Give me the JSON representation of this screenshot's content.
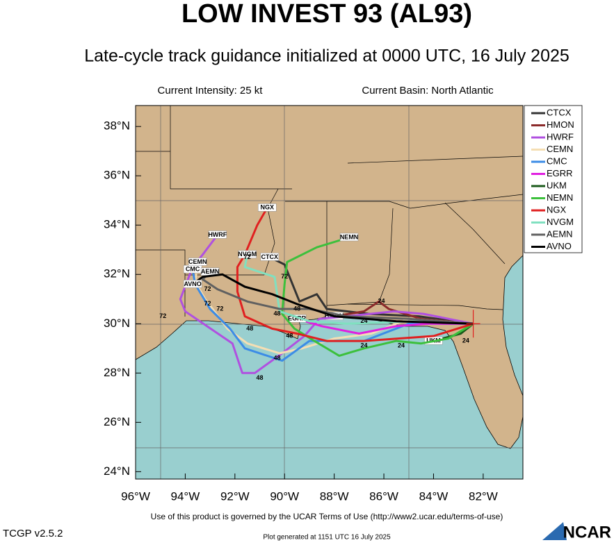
{
  "header": {
    "title": "LOW INVEST 93 (AL93)",
    "subtitle": "Late-cycle track guidance initialized at 0000 UTC, 16 July 2025",
    "intensity": "Current Intensity: 25 kt",
    "basin": "Current Basin: North Atlantic"
  },
  "footer": {
    "terms": "Use of this product is governed by the UCAR Terms of Use (http://www2.ucar.edu/terms-of-use)",
    "version": "TCGP v2.5.2",
    "generated": "Plot generated at 1151 UTC   16 July 2025",
    "logo": "NCAR"
  },
  "chart_data": {
    "type": "map",
    "xlim": [
      -96,
      -80.4
    ],
    "ylim": [
      23.7,
      38.85
    ],
    "xticks": [
      {
        "value": -96,
        "label": "96°W"
      },
      {
        "value": -94,
        "label": "94°W"
      },
      {
        "value": -92,
        "label": "92°W"
      },
      {
        "value": -90,
        "label": "90°W"
      },
      {
        "value": -88,
        "label": "88°W"
      },
      {
        "value": -86,
        "label": "86°W"
      },
      {
        "value": -84,
        "label": "84°W"
      },
      {
        "value": -82,
        "label": "82°W"
      }
    ],
    "yticks": [
      {
        "value": 24,
        "label": "24°N"
      },
      {
        "value": 26,
        "label": "26°N"
      },
      {
        "value": 28,
        "label": "28°N"
      },
      {
        "value": 30,
        "label": "30°N"
      },
      {
        "value": 32,
        "label": "32°N"
      },
      {
        "value": 34,
        "label": "34°N"
      },
      {
        "value": 36,
        "label": "36°N"
      },
      {
        "value": 38,
        "label": "38°N"
      }
    ],
    "series": [
      {
        "name": "CTCX",
        "color": "#333333",
        "lon": [
          -82.4,
          -84.6,
          -86.6,
          -88.3,
          -88.7,
          -89.4,
          -90.0,
          -90.6
        ],
        "lat": [
          30.0,
          30.3,
          30.4,
          30.6,
          31.2,
          30.9,
          32.4,
          32.7
        ]
      },
      {
        "name": "HMON",
        "color": "#8b2a2a",
        "lon": [
          -82.4,
          -84.5,
          -85.8,
          -86.2,
          -86.8,
          -88.0
        ],
        "lat": [
          30.0,
          30.2,
          30.6,
          30.9,
          30.5,
          30.3
        ]
      },
      {
        "name": "HWRF",
        "color": "#b050e0",
        "lon": [
          -82.4,
          -84.4,
          -85.6,
          -87.5,
          -88.6,
          -89.2,
          -90.1,
          -91.2,
          -91.7,
          -92.1,
          -94.0,
          -94.2,
          -93.7,
          -93.3,
          -92.7
        ],
        "lat": [
          30.0,
          30.4,
          30.5,
          30.3,
          30.2,
          29.5,
          28.8,
          28.0,
          28.0,
          29.2,
          30.5,
          31.0,
          32.3,
          32.8,
          33.6
        ]
      },
      {
        "name": "CEMN",
        "color": "#f5deb3",
        "lon": [
          -82.4,
          -85.0,
          -86.5,
          -88.0,
          -89.3,
          -90.2,
          -91.5,
          -92.3,
          -93.2,
          -93.6,
          -93.5
        ],
        "lat": [
          30.0,
          30.2,
          29.6,
          29.4,
          29.0,
          28.8,
          29.2,
          29.8,
          31.0,
          31.7,
          32.5
        ]
      },
      {
        "name": "CMC",
        "color": "#3c8ce6",
        "lon": [
          -82.4,
          -85.0,
          -86.8,
          -89.0,
          -90.1,
          -91.6,
          -92.2,
          -93.0,
          -93.6,
          -93.7
        ],
        "lat": [
          30.0,
          30.0,
          29.3,
          29.3,
          28.5,
          29.0,
          29.8,
          30.6,
          31.6,
          32.2
        ]
      },
      {
        "name": "EGRR",
        "color": "#e020e0",
        "lon": [
          -82.4,
          -84.2,
          -85.5,
          -87.0,
          -88.5,
          -89.5
        ],
        "lat": [
          30.0,
          30.0,
          29.9,
          29.6,
          29.9,
          30.2
        ]
      },
      {
        "name": "UKM",
        "color": "#1a5a1a",
        "lon": [
          -82.4,
          -82.9,
          -84.0
        ],
        "lat": [
          30.0,
          29.6,
          29.3
        ]
      },
      {
        "name": "NEMN",
        "color": "#3cc03c",
        "lon": [
          -82.4,
          -83.4,
          -84.5,
          -85.5,
          -86.8,
          -87.8,
          -88.8,
          -89.6,
          -90.1,
          -90.0,
          -89.9,
          -88.7,
          -87.4
        ],
        "lat": [
          30.0,
          29.4,
          29.2,
          29.3,
          29.0,
          28.7,
          29.3,
          29.8,
          30.4,
          31.6,
          32.5,
          33.1,
          33.5
        ]
      },
      {
        "name": "NGX",
        "color": "#e02020",
        "lon": [
          -82.4,
          -84.0,
          -86.8,
          -88.3,
          -89.5,
          -90.5,
          -91.6,
          -91.9,
          -91.9,
          -91.6,
          -91.1,
          -90.7
        ],
        "lat": [
          30.0,
          29.5,
          29.3,
          29.3,
          29.6,
          29.8,
          30.3,
          31.3,
          32.3,
          32.8,
          34.0,
          34.7
        ]
      },
      {
        "name": "NVGM",
        "color": "#80e0c0",
        "lon": [
          -82.4,
          -84.8,
          -87.5,
          -89.0,
          -90.2,
          -90.4,
          -91.6,
          -91.5
        ],
        "lat": [
          30.0,
          30.1,
          30.0,
          30.1,
          30.5,
          31.9,
          32.3,
          32.8
        ]
      },
      {
        "name": "AEMN",
        "color": "#606060",
        "lon": [
          -82.4,
          -85.0,
          -87.5,
          -89.0,
          -90.2,
          -91.5,
          -92.7,
          -93.3,
          -93.0
        ],
        "lat": [
          30.0,
          30.2,
          30.3,
          30.6,
          30.6,
          30.9,
          31.4,
          31.8,
          32.1
        ]
      },
      {
        "name": "AVNO",
        "color": "#000000",
        "lon": [
          -82.4,
          -85.5,
          -88.0,
          -89.5,
          -90.5,
          -91.6,
          -92.5,
          -93.3,
          -93.7
        ],
        "lat": [
          30.0,
          30.1,
          30.3,
          30.8,
          31.2,
          31.5,
          32.0,
          31.9,
          31.6
        ]
      }
    ],
    "hour_labels": [
      {
        "text": "72",
        "lon": -91.5,
        "lat": 32.7
      },
      {
        "text": "72",
        "lon": -90.0,
        "lat": 31.9
      },
      {
        "text": "72",
        "lon": -93.1,
        "lat": 31.4
      },
      {
        "text": "72",
        "lon": -93.1,
        "lat": 30.8
      },
      {
        "text": "72",
        "lon": -92.6,
        "lat": 30.6
      },
      {
        "text": "72",
        "lon": -94.9,
        "lat": 30.3
      },
      {
        "text": "48",
        "lon": -89.5,
        "lat": 30.6
      },
      {
        "text": "48",
        "lon": -90.3,
        "lat": 30.4
      },
      {
        "text": "48",
        "lon": -91.4,
        "lat": 29.8
      },
      {
        "text": "48",
        "lon": -90.3,
        "lat": 28.6
      },
      {
        "text": "48",
        "lon": -91.0,
        "lat": 27.8
      },
      {
        "text": "48",
        "lon": -89.8,
        "lat": 29.5
      },
      {
        "text": "24",
        "lon": -86.1,
        "lat": 30.9
      },
      {
        "text": "24",
        "lon": -86.8,
        "lat": 30.1
      },
      {
        "text": "24",
        "lon": -86.8,
        "lat": 29.1
      },
      {
        "text": "24",
        "lon": -85.3,
        "lat": 29.1
      },
      {
        "text": "24",
        "lon": -82.7,
        "lat": 29.3
      }
    ]
  }
}
